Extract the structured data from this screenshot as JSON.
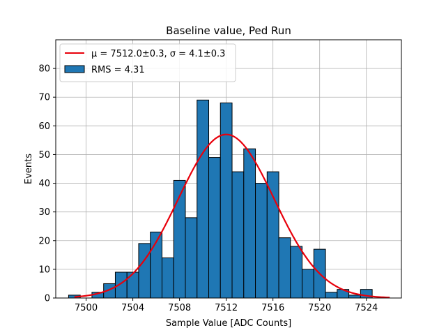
{
  "chart_data": {
    "type": "bar",
    "title": "Baseline value, Ped Run",
    "xlabel": "Sample Value [ADC Counts]",
    "ylabel": "Events",
    "xlim": [
      7497.4,
      7527.0
    ],
    "ylim": [
      0,
      90
    ],
    "xticks": [
      7500,
      7504,
      7508,
      7512,
      7516,
      7520,
      7524
    ],
    "yticks": [
      0,
      10,
      20,
      30,
      40,
      50,
      60,
      70,
      80
    ],
    "grid": true,
    "legend_position": "top-left",
    "bin_width": 1,
    "bins": [
      {
        "x": 7499,
        "count": 1
      },
      {
        "x": 7500,
        "count": 0
      },
      {
        "x": 7501,
        "count": 2
      },
      {
        "x": 7502,
        "count": 5
      },
      {
        "x": 7503,
        "count": 9
      },
      {
        "x": 7504,
        "count": 9
      },
      {
        "x": 7505,
        "count": 19
      },
      {
        "x": 7506,
        "count": 23
      },
      {
        "x": 7507,
        "count": 14
      },
      {
        "x": 7508,
        "count": 41
      },
      {
        "x": 7509,
        "count": 28
      },
      {
        "x": 7510,
        "count": 69
      },
      {
        "x": 7511,
        "count": 49
      },
      {
        "x": 7512,
        "count": 68
      },
      {
        "x": 7513,
        "count": 44
      },
      {
        "x": 7514,
        "count": 52
      },
      {
        "x": 7515,
        "count": 40
      },
      {
        "x": 7516,
        "count": 44
      },
      {
        "x": 7517,
        "count": 21
      },
      {
        "x": 7518,
        "count": 18
      },
      {
        "x": 7519,
        "count": 10
      },
      {
        "x": 7520,
        "count": 17
      },
      {
        "x": 7521,
        "count": 2
      },
      {
        "x": 7522,
        "count": 3
      },
      {
        "x": 7523,
        "count": 1
      },
      {
        "x": 7524,
        "count": 3
      }
    ],
    "fit": {
      "type": "gaussian",
      "amplitude": 57,
      "mu": 7512.0,
      "sigma": 4.1,
      "x_range": [
        7499.0,
        7526.0
      ]
    },
    "series": [
      {
        "name": "μ = 7512.0±0.3, σ = 4.1±0.3",
        "kind": "line",
        "color": "#e8000b"
      },
      {
        "name": "RMS = 4.31",
        "kind": "histogram",
        "color": "#1f77b4"
      }
    ]
  }
}
